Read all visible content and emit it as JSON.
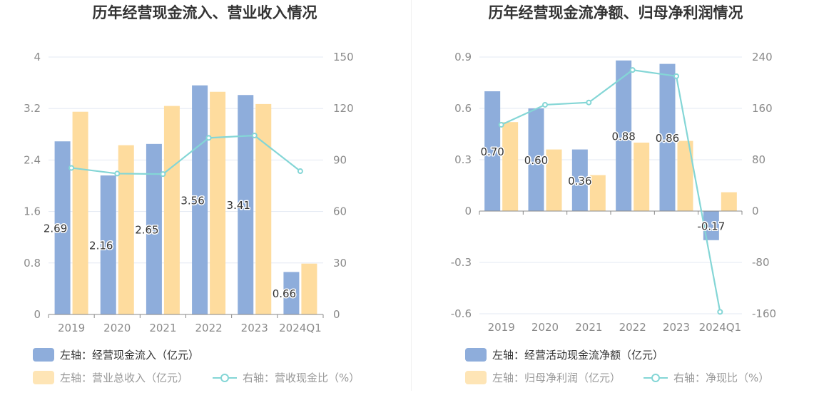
{
  "colors": {
    "bar_primary": "#8eaddb",
    "bar_secondary": "#fedc9e",
    "line": "#84d6d6",
    "grid": "#e3e8f3",
    "axis": "#888888",
    "text": "#333333",
    "tick": "#8a8a8a"
  },
  "chart_data": [
    {
      "type": "bar+line",
      "title": "历年经营现金流入、营业收入情况",
      "categories": [
        "2019",
        "2020",
        "2021",
        "2022",
        "2023",
        "2024Q1"
      ],
      "left_axis": {
        "min": 0,
        "max": 4,
        "ticks": [
          "0",
          "0.8",
          "1.6",
          "2.4",
          "3.2",
          "4"
        ]
      },
      "right_axis": {
        "min": 0,
        "max": 150,
        "ticks": [
          "0",
          "30",
          "60",
          "90",
          "120",
          "150"
        ]
      },
      "series": [
        {
          "name": "左轴：经营现金流入（亿元）",
          "type": "bar",
          "axis": "left",
          "color": "#8eaddb",
          "values": [
            2.69,
            2.16,
            2.65,
            3.56,
            3.41,
            0.66
          ],
          "labels": [
            "2.69",
            "2.16",
            "2.65",
            "3.56",
            "3.41",
            "0.66"
          ]
        },
        {
          "name": "左轴：营业总收入（亿元）",
          "type": "bar",
          "axis": "left",
          "color": "#fedc9e",
          "values": [
            3.15,
            2.63,
            3.24,
            3.46,
            3.27,
            0.79
          ]
        },
        {
          "name": "右轴：营收现金比（%）",
          "type": "line",
          "axis": "right",
          "color": "#84d6d6",
          "values": [
            85.4,
            82.1,
            81.8,
            102.9,
            104.3,
            83.5
          ]
        }
      ]
    },
    {
      "type": "bar+line",
      "title": "历年经营现金流净额、归母净利润情况",
      "categories": [
        "2019",
        "2020",
        "2021",
        "2022",
        "2023",
        "2024Q1"
      ],
      "left_axis": {
        "min": -0.6,
        "max": 0.9,
        "ticks": [
          "-0.6",
          "-0.3",
          "0",
          "0.3",
          "0.6",
          "0.9"
        ]
      },
      "right_axis": {
        "min": -160,
        "max": 240,
        "ticks": [
          "-160",
          "-80",
          "0",
          "80",
          "160",
          "240"
        ]
      },
      "series": [
        {
          "name": "左轴：经营活动现金流净额（亿元）",
          "type": "bar",
          "axis": "left",
          "color": "#8eaddb",
          "values": [
            0.7,
            0.6,
            0.36,
            0.88,
            0.86,
            -0.17
          ],
          "labels": [
            "0.70",
            "0.60",
            "0.36",
            "0.88",
            "0.86",
            "-0.17"
          ]
        },
        {
          "name": "左轴：归母净利润（亿元）",
          "type": "bar",
          "axis": "left",
          "color": "#fedc9e",
          "values": [
            0.52,
            0.36,
            0.21,
            0.4,
            0.41,
            0.11
          ]
        },
        {
          "name": "右轴：净现比（%）",
          "type": "line",
          "axis": "right",
          "color": "#84d6d6",
          "values": [
            134.5,
            165.6,
            169.2,
            219.8,
            210.2,
            -157.1
          ]
        }
      ]
    }
  ]
}
